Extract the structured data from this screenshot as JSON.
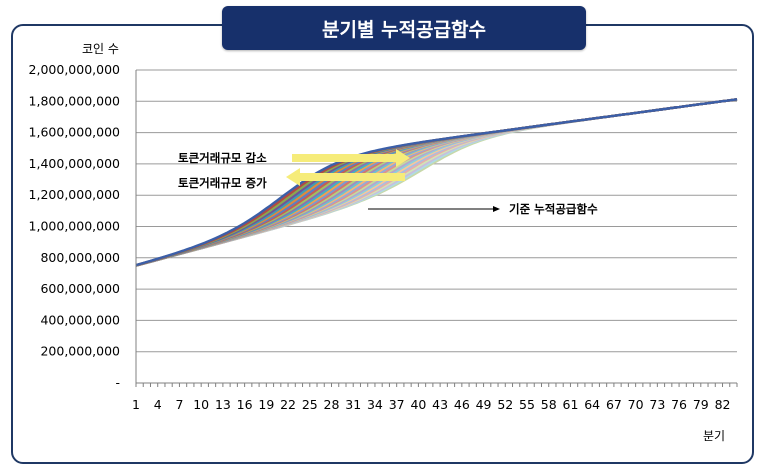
{
  "chart_data": {
    "type": "line",
    "title": "분기별 누적공급함수",
    "ylabel": "코인 수",
    "xlabel": "분기",
    "ylim": [
      0,
      2000000000
    ],
    "yticks": [
      "-",
      "200,000,000",
      "400,000,000",
      "600,000,000",
      "800,000,000",
      "1,000,000,000",
      "1,200,000,000",
      "1,400,000,000",
      "1,600,000,000",
      "1,800,000,000",
      "2,000,000,000"
    ],
    "xlim": [
      1,
      84
    ],
    "xticks": [
      "1",
      "4",
      "7",
      "10",
      "13",
      "16",
      "19",
      "22",
      "25",
      "28",
      "31",
      "34",
      "37",
      "40",
      "43",
      "46",
      "49",
      "52",
      "55",
      "58",
      "61",
      "64",
      "67",
      "70",
      "73",
      "76",
      "79",
      "82"
    ],
    "grid": true,
    "series_family": {
      "count": 30,
      "start_value": 750000000,
      "end_value": 1770000000,
      "midpoint_range": [
        22,
        42
      ]
    },
    "annotations": {
      "decrease": "토큰거래규모 감소",
      "increase": "토큰거래규모 증가",
      "baseline": "기준 누적공급함수"
    },
    "colors": [
      "#3b5fa8",
      "#b04a44",
      "#8aa84f",
      "#6f5597",
      "#3f9db5",
      "#e08a3c",
      "#5b7fc4",
      "#c45c56",
      "#a0bf62",
      "#8a70b0",
      "#42b0c6",
      "#f0a050",
      "#7b98d2",
      "#d37470",
      "#b5cf80",
      "#a08cc0",
      "#6cc1d2",
      "#f4b67a",
      "#93aadb",
      "#de928f",
      "#c6db9c",
      "#b5a5cf",
      "#8dcfdc",
      "#f7c79b",
      "#a9bde3",
      "#e6aeab",
      "#d3e4b4",
      "#c9bcdc",
      "#aedbe5",
      "#c8d8a8"
    ]
  }
}
